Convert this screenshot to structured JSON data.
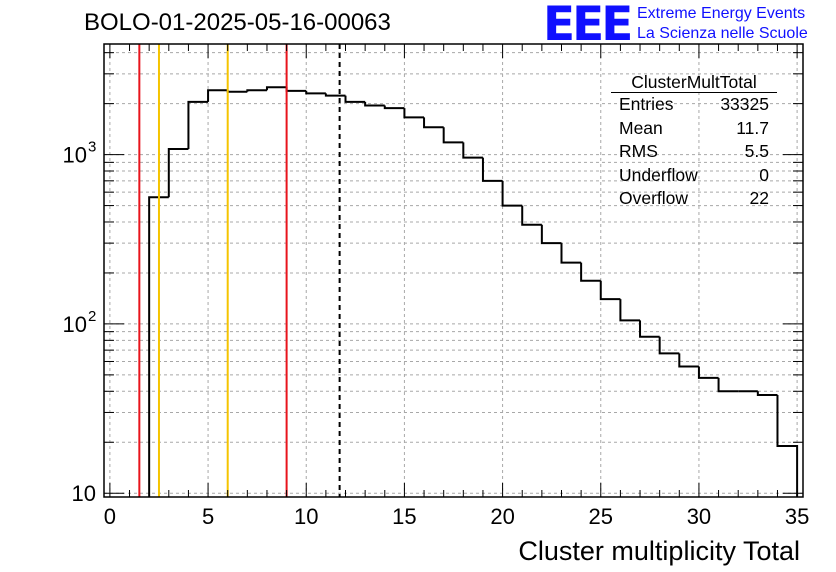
{
  "header": {
    "run_title": "BOLO-01-2025-05-16-00063",
    "logo_text": "EEE",
    "logo_line1": "Extreme Energy Events",
    "logo_line2": "La Scienza nelle Scuole"
  },
  "stats_box": {
    "title": "ClusterMultTotal",
    "rows": [
      {
        "label": "Entries",
        "value": "33325"
      },
      {
        "label": "Mean",
        "value": "11.7"
      },
      {
        "label": "RMS",
        "value": "5.5"
      },
      {
        "label": "Underflow",
        "value": "0"
      },
      {
        "label": "Overflow",
        "value": "22"
      }
    ]
  },
  "colors": {
    "histogram": "#000000",
    "red_lines": "#e8141c",
    "yellow_lines": "#f5c400",
    "grid": "#a8a8a8",
    "logo": "#1010ff"
  },
  "chart_data": {
    "type": "histogram",
    "title": "BOLO-01-2025-05-16-00063",
    "xlabel": "Cluster multiplicity Total",
    "ylabel": "",
    "yscale": "log",
    "xlim": [
      -0.3,
      35.3
    ],
    "ylim": [
      9.5,
      4500
    ],
    "grid": true,
    "x_ticks": [
      0,
      5,
      10,
      15,
      20,
      25,
      30,
      35
    ],
    "y_ticks": [
      {
        "value": 10,
        "base": "10",
        "exp": ""
      },
      {
        "value": 100,
        "base": "10",
        "exp": "2"
      },
      {
        "value": 1000,
        "base": "10",
        "exp": "3"
      }
    ],
    "bin_width": 1,
    "bins": [
      {
        "x": 2.5,
        "value": 560
      },
      {
        "x": 3.5,
        "value": 1080
      },
      {
        "x": 4.5,
        "value": 2050
      },
      {
        "x": 5.5,
        "value": 2400
      },
      {
        "x": 6.5,
        "value": 2350
      },
      {
        "x": 7.5,
        "value": 2400
      },
      {
        "x": 8.5,
        "value": 2500
      },
      {
        "x": 9.5,
        "value": 2380
      },
      {
        "x": 10.5,
        "value": 2300
      },
      {
        "x": 11.5,
        "value": 2230
      },
      {
        "x": 12.5,
        "value": 2050
      },
      {
        "x": 13.5,
        "value": 1950
      },
      {
        "x": 14.5,
        "value": 1880
      },
      {
        "x": 15.5,
        "value": 1660
      },
      {
        "x": 16.5,
        "value": 1450
      },
      {
        "x": 17.5,
        "value": 1180
      },
      {
        "x": 18.5,
        "value": 960
      },
      {
        "x": 19.5,
        "value": 700
      },
      {
        "x": 20.5,
        "value": 500
      },
      {
        "x": 21.5,
        "value": 385
      },
      {
        "x": 22.5,
        "value": 300
      },
      {
        "x": 23.5,
        "value": 230
      },
      {
        "x": 24.5,
        "value": 180
      },
      {
        "x": 25.5,
        "value": 140
      },
      {
        "x": 26.5,
        "value": 105
      },
      {
        "x": 27.5,
        "value": 84
      },
      {
        "x": 28.5,
        "value": 67
      },
      {
        "x": 29.5,
        "value": 56
      },
      {
        "x": 30.5,
        "value": 48
      },
      {
        "x": 31.5,
        "value": 40
      },
      {
        "x": 32.5,
        "value": 40
      },
      {
        "x": 33.5,
        "value": 38
      },
      {
        "x": 34.5,
        "value": 19
      }
    ],
    "vertical_lines": [
      {
        "x": 1.5,
        "color": "red",
        "style": "solid"
      },
      {
        "x": 2.5,
        "color": "yellow",
        "style": "solid"
      },
      {
        "x": 6.0,
        "color": "yellow",
        "style": "solid"
      },
      {
        "x": 9.0,
        "color": "red",
        "style": "solid"
      },
      {
        "x": 11.7,
        "color": "black",
        "style": "dashed"
      }
    ]
  }
}
